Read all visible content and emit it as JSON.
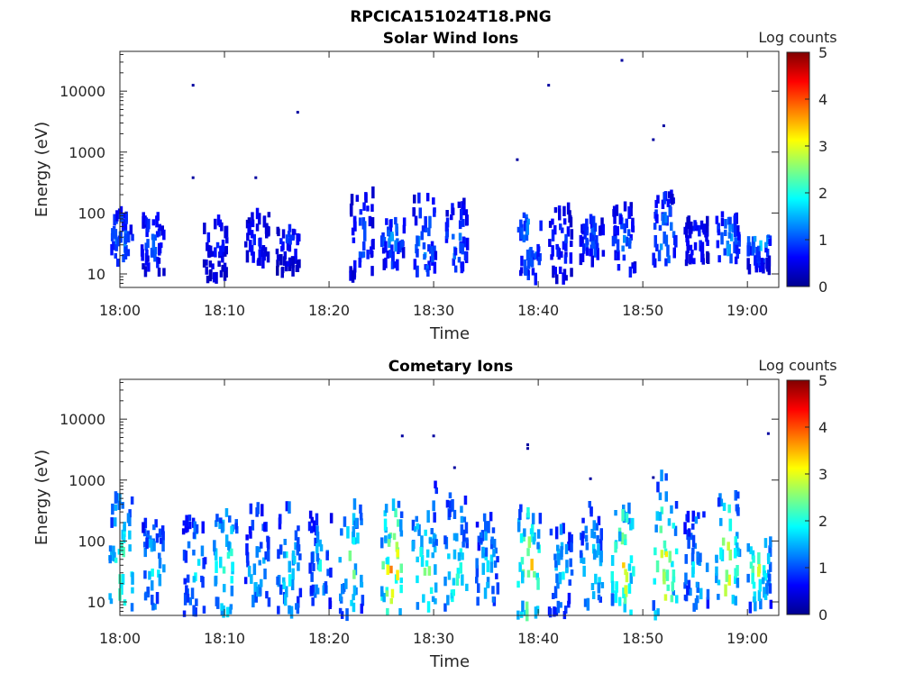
{
  "figure_title": "RPCICA151024T18.PNG",
  "colorbar_label": "Log counts",
  "colormap": "jet",
  "chart_data": [
    {
      "type": "heatmap",
      "title": "Solar Wind Ions",
      "xlabel": "Time",
      "ylabel": "Energy (eV)",
      "y_scale": "log",
      "ylim": [
        6,
        45000
      ],
      "xlim": [
        "18:00",
        "19:03"
      ],
      "x_ticks": [
        "18:00",
        "18:10",
        "18:20",
        "18:30",
        "18:40",
        "18:50",
        "19:00"
      ],
      "y_ticks": [
        "10",
        "100",
        "1000",
        "10000"
      ],
      "y_tick_values": [
        10,
        100,
        1000,
        10000
      ],
      "colorbar": {
        "label": "Log counts",
        "range": [
          0,
          5
        ],
        "ticks": [
          "0",
          "1",
          "2",
          "3",
          "4",
          "5"
        ]
      },
      "bursts": [
        {
          "t": "18:00",
          "e_lo": 15,
          "e_hi": 120,
          "peak": 1.5
        },
        {
          "t": "18:03",
          "e_lo": 10,
          "e_hi": 90,
          "peak": 1.3
        },
        {
          "t": "18:09",
          "e_lo": 8,
          "e_hi": 80,
          "peak": 1.0
        },
        {
          "t": "18:13",
          "e_lo": 15,
          "e_hi": 100,
          "peak": 1.0
        },
        {
          "t": "18:16",
          "e_lo": 10,
          "e_hi": 60,
          "peak": 1.0
        },
        {
          "t": "18:23",
          "e_lo": 8,
          "e_hi": 250,
          "peak": 1.2
        },
        {
          "t": "18:26",
          "e_lo": 12,
          "e_hi": 80,
          "peak": 1.5
        },
        {
          "t": "18:29",
          "e_lo": 10,
          "e_hi": 200,
          "peak": 1.6
        },
        {
          "t": "18:32",
          "e_lo": 12,
          "e_hi": 150,
          "peak": 1.4
        },
        {
          "t": "18:39",
          "e_lo": 8,
          "e_hi": 100,
          "peak": 1.7
        },
        {
          "t": "18:42",
          "e_lo": 8,
          "e_hi": 130,
          "peak": 1.1
        },
        {
          "t": "18:45",
          "e_lo": 15,
          "e_hi": 80,
          "peak": 1.3
        },
        {
          "t": "18:48",
          "e_lo": 10,
          "e_hi": 150,
          "peak": 1.4
        },
        {
          "t": "18:52",
          "e_lo": 15,
          "e_hi": 200,
          "peak": 1.7
        },
        {
          "t": "18:55",
          "e_lo": 15,
          "e_hi": 80,
          "peak": 1.0
        },
        {
          "t": "18:58",
          "e_lo": 15,
          "e_hi": 100,
          "peak": 1.6
        },
        {
          "t": "19:01",
          "e_lo": 10,
          "e_hi": 40,
          "peak": 1.8
        }
      ],
      "sparse_points": [
        {
          "t": "18:07",
          "e": 12500
        },
        {
          "t": "18:17",
          "e": 4500
        },
        {
          "t": "18:41",
          "e": 12500
        },
        {
          "t": "18:48",
          "e": 32000
        },
        {
          "t": "18:52",
          "e": 2700
        },
        {
          "t": "18:51",
          "e": 1600
        },
        {
          "t": "18:38",
          "e": 750
        },
        {
          "t": "18:07",
          "e": 380
        },
        {
          "t": "18:13",
          "e": 380
        }
      ]
    },
    {
      "type": "heatmap",
      "title": "Cometary Ions",
      "xlabel": "Time",
      "ylabel": "Energy (eV)",
      "y_scale": "log",
      "ylim": [
        6,
        45000
      ],
      "xlim": [
        "18:00",
        "19:03"
      ],
      "x_ticks": [
        "18:00",
        "18:10",
        "18:20",
        "18:30",
        "18:40",
        "18:50",
        "19:00"
      ],
      "y_ticks": [
        "10",
        "100",
        "1000",
        "10000"
      ],
      "y_tick_values": [
        10,
        100,
        1000,
        10000
      ],
      "colorbar": {
        "label": "Log counts",
        "range": [
          0,
          5
        ],
        "ticks": [
          "0",
          "1",
          "2",
          "3",
          "4",
          "5"
        ]
      },
      "bursts": [
        {
          "t": "18:00",
          "e_lo": 8,
          "e_hi": 600,
          "peak": 3.0
        },
        {
          "t": "18:03",
          "e_lo": 8,
          "e_hi": 200,
          "peak": 2.2
        },
        {
          "t": "18:07",
          "e_lo": 6,
          "e_hi": 250,
          "peak": 2.0
        },
        {
          "t": "18:10",
          "e_lo": 6,
          "e_hi": 300,
          "peak": 2.8
        },
        {
          "t": "18:13",
          "e_lo": 8,
          "e_hi": 350,
          "peak": 2.0
        },
        {
          "t": "18:16",
          "e_lo": 6,
          "e_hi": 400,
          "peak": 2.2
        },
        {
          "t": "18:19",
          "e_lo": 8,
          "e_hi": 300,
          "peak": 2.0
        },
        {
          "t": "18:22",
          "e_lo": 6,
          "e_hi": 500,
          "peak": 2.6
        },
        {
          "t": "18:26",
          "e_lo": 6,
          "e_hi": 400,
          "peak": 3.8
        },
        {
          "t": "18:29",
          "e_lo": 8,
          "e_hi": 900,
          "peak": 3.0
        },
        {
          "t": "18:32",
          "e_lo": 8,
          "e_hi": 600,
          "peak": 2.8
        },
        {
          "t": "18:35",
          "e_lo": 8,
          "e_hi": 300,
          "peak": 2.0
        },
        {
          "t": "18:39",
          "e_lo": 6,
          "e_hi": 350,
          "peak": 3.6
        },
        {
          "t": "18:42",
          "e_lo": 6,
          "e_hi": 200,
          "peak": 2.0
        },
        {
          "t": "18:45",
          "e_lo": 8,
          "e_hi": 400,
          "peak": 2.4
        },
        {
          "t": "18:48",
          "e_lo": 6,
          "e_hi": 400,
          "peak": 3.5
        },
        {
          "t": "18:52",
          "e_lo": 6,
          "e_hi": 1200,
          "peak": 3.4
        },
        {
          "t": "18:55",
          "e_lo": 8,
          "e_hi": 300,
          "peak": 2.2
        },
        {
          "t": "18:58",
          "e_lo": 8,
          "e_hi": 600,
          "peak": 3.5
        },
        {
          "t": "19:01",
          "e_lo": 8,
          "e_hi": 100,
          "peak": 3.0
        }
      ],
      "sparse_points": [
        {
          "t": "18:27",
          "e": 5300
        },
        {
          "t": "18:30",
          "e": 5300
        },
        {
          "t": "18:39",
          "e": 3800
        },
        {
          "t": "18:39",
          "e": 3300
        },
        {
          "t": "18:32",
          "e": 1600
        },
        {
          "t": "18:51",
          "e": 1100
        },
        {
          "t": "18:45",
          "e": 1050
        },
        {
          "t": "19:02",
          "e": 5800
        }
      ]
    }
  ]
}
